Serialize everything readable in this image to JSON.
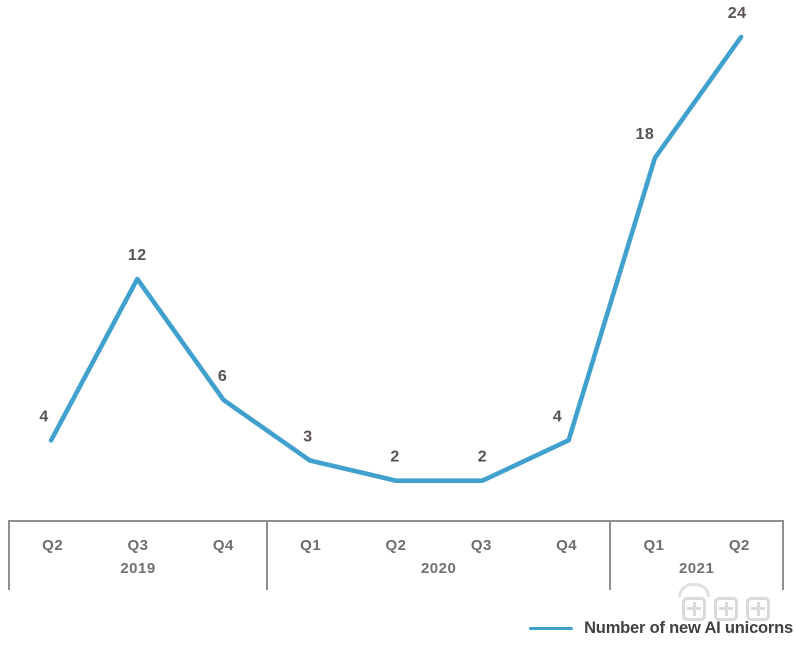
{
  "chart_data": {
    "type": "line",
    "title": "",
    "categories": [
      "Q2 2019",
      "Q3 2019",
      "Q4 2019",
      "Q1 2020",
      "Q2 2020",
      "Q3 2020",
      "Q4 2020",
      "Q1 2021",
      "Q2 2021"
    ],
    "quarter_labels": [
      "Q2",
      "Q3",
      "Q4",
      "Q1",
      "Q2",
      "Q3",
      "Q4",
      "Q1",
      "Q2"
    ],
    "year_groups": [
      {
        "label": "2019",
        "span": 3
      },
      {
        "label": "2020",
        "span": 4
      },
      {
        "label": "2021",
        "span": 2
      }
    ],
    "series": [
      {
        "name": "Number of new AI unicorns",
        "values": [
          4,
          12,
          6,
          3,
          2,
          2,
          4,
          18,
          24
        ]
      }
    ],
    "values": [
      4,
      12,
      6,
      3,
      2,
      2,
      4,
      18,
      24
    ],
    "xlabel": "",
    "ylabel": "",
    "ylim": [
      0,
      26
    ],
    "grid": false,
    "data_labels_shown": true,
    "legend_position": "bottom-right",
    "line_color": "#41A1CE"
  },
  "legend": {
    "label": "Number of new AI unicorns",
    "swatch_color": "#41A1CE"
  },
  "watermark": {
    "text": "智东西"
  },
  "colors": {
    "line": "#41A1CE",
    "value_label": "#575156",
    "axis_label": "#6D6E71",
    "axis_border": "#8E8F92",
    "legend_text": "#414042",
    "watermark": "#B6B7B9"
  }
}
